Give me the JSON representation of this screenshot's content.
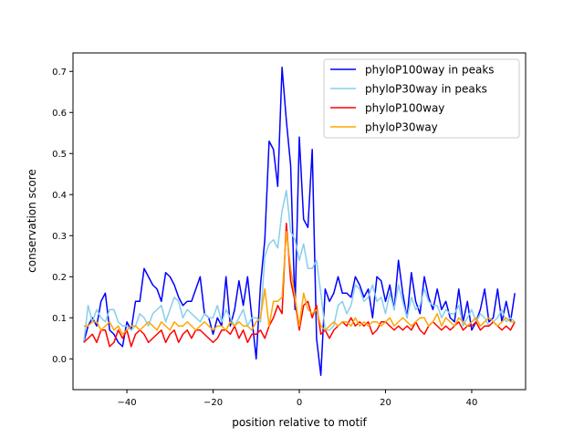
{
  "chart_data": {
    "type": "line",
    "title": "",
    "xlabel": "position relative to motif",
    "ylabel": "conservation score",
    "xlim": [
      -52.5,
      52.5
    ],
    "ylim": [
      -0.075,
      0.745
    ],
    "xticks": [
      -40,
      -20,
      0,
      20,
      40
    ],
    "yticks": [
      0.0,
      0.1,
      0.2,
      0.3,
      0.4,
      0.5,
      0.6,
      0.7
    ],
    "xtick_labels": [
      "−40",
      "−20",
      "0",
      "20",
      "40"
    ],
    "ytick_labels": [
      "0.0",
      "0.1",
      "0.2",
      "0.3",
      "0.4",
      "0.5",
      "0.6",
      "0.7"
    ],
    "legend_position": "top-right",
    "x": [
      -50,
      -49,
      -48,
      -47,
      -46,
      -45,
      -44,
      -43,
      -42,
      -41,
      -40,
      -39,
      -38,
      -37,
      -36,
      -35,
      -34,
      -33,
      -32,
      -31,
      -30,
      -29,
      -28,
      -27,
      -26,
      -25,
      -24,
      -23,
      -22,
      -21,
      -20,
      -19,
      -18,
      -17,
      -16,
      -15,
      -14,
      -13,
      -12,
      -11,
      -10,
      -9,
      -8,
      -7,
      -6,
      -5,
      -4,
      -3,
      -2,
      -1,
      0,
      1,
      2,
      3,
      4,
      5,
      6,
      7,
      8,
      9,
      10,
      11,
      12,
      13,
      14,
      15,
      16,
      17,
      18,
      19,
      20,
      21,
      22,
      23,
      24,
      25,
      26,
      27,
      28,
      29,
      30,
      31,
      32,
      33,
      34,
      35,
      36,
      37,
      38,
      39,
      40,
      41,
      42,
      43,
      44,
      45,
      46,
      47,
      48,
      49,
      50
    ],
    "series": [
      {
        "name": "phyloP100way in peaks",
        "color": "#0000ff",
        "values": [
          0.04,
          0.08,
          0.1,
          0.08,
          0.14,
          0.16,
          0.07,
          0.06,
          0.04,
          0.03,
          0.09,
          0.07,
          0.14,
          0.14,
          0.22,
          0.2,
          0.18,
          0.17,
          0.14,
          0.21,
          0.2,
          0.18,
          0.15,
          0.13,
          0.14,
          0.14,
          0.17,
          0.2,
          0.11,
          0.1,
          0.06,
          0.1,
          0.08,
          0.2,
          0.08,
          0.12,
          0.19,
          0.13,
          0.2,
          0.1,
          0.0,
          0.18,
          0.29,
          0.53,
          0.51,
          0.42,
          0.71,
          0.58,
          0.47,
          0.12,
          0.54,
          0.34,
          0.32,
          0.51,
          0.05,
          -0.04,
          0.17,
          0.14,
          0.16,
          0.2,
          0.16,
          0.16,
          0.15,
          0.2,
          0.18,
          0.15,
          0.17,
          0.1,
          0.2,
          0.19,
          0.14,
          0.18,
          0.12,
          0.24,
          0.16,
          0.1,
          0.21,
          0.14,
          0.11,
          0.2,
          0.15,
          0.12,
          0.17,
          0.12,
          0.14,
          0.1,
          0.09,
          0.17,
          0.09,
          0.14,
          0.07,
          0.09,
          0.12,
          0.17,
          0.09,
          0.1,
          0.17,
          0.09,
          0.14,
          0.09,
          0.16
        ]
      },
      {
        "name": "phyloP30way in peaks",
        "color": "#87ceeb",
        "values": [
          0.04,
          0.13,
          0.09,
          0.12,
          0.1,
          0.09,
          0.12,
          0.12,
          0.09,
          0.08,
          0.08,
          0.07,
          0.08,
          0.11,
          0.1,
          0.08,
          0.11,
          0.12,
          0.13,
          0.09,
          0.12,
          0.15,
          0.14,
          0.1,
          0.12,
          0.11,
          0.1,
          0.09,
          0.11,
          0.1,
          0.1,
          0.13,
          0.09,
          0.12,
          0.1,
          0.08,
          0.1,
          0.12,
          0.08,
          0.1,
          0.1,
          0.09,
          0.25,
          0.28,
          0.29,
          0.27,
          0.36,
          0.41,
          0.31,
          0.29,
          0.24,
          0.28,
          0.22,
          0.22,
          0.24,
          0.16,
          0.07,
          0.07,
          0.08,
          0.13,
          0.14,
          0.11,
          0.13,
          0.18,
          0.17,
          0.14,
          0.15,
          0.18,
          0.14,
          0.15,
          0.11,
          0.16,
          0.12,
          0.18,
          0.14,
          0.1,
          0.15,
          0.12,
          0.13,
          0.17,
          0.14,
          0.13,
          0.13,
          0.1,
          0.12,
          0.11,
          0.11,
          0.13,
          0.08,
          0.1,
          0.12,
          0.09,
          0.11,
          0.1,
          0.08,
          0.09,
          0.1,
          0.12,
          0.09,
          0.1,
          0.09
        ]
      },
      {
        "name": "phyloP100way",
        "color": "#ff0000",
        "values": [
          0.04,
          0.05,
          0.06,
          0.04,
          0.07,
          0.07,
          0.03,
          0.04,
          0.07,
          0.05,
          0.07,
          0.03,
          0.06,
          0.07,
          0.06,
          0.04,
          0.05,
          0.06,
          0.07,
          0.04,
          0.06,
          0.07,
          0.04,
          0.06,
          0.07,
          0.05,
          0.07,
          0.07,
          0.06,
          0.05,
          0.04,
          0.05,
          0.07,
          0.07,
          0.06,
          0.08,
          0.05,
          0.07,
          0.04,
          0.06,
          0.06,
          0.07,
          0.05,
          0.08,
          0.1,
          0.13,
          0.11,
          0.33,
          0.19,
          0.14,
          0.07,
          0.13,
          0.14,
          0.1,
          0.13,
          0.06,
          0.07,
          0.05,
          0.07,
          0.08,
          0.09,
          0.08,
          0.1,
          0.08,
          0.09,
          0.08,
          0.09,
          0.06,
          0.07,
          0.09,
          0.09,
          0.08,
          0.07,
          0.08,
          0.07,
          0.08,
          0.07,
          0.09,
          0.07,
          0.06,
          0.08,
          0.09,
          0.08,
          0.07,
          0.08,
          0.07,
          0.08,
          0.09,
          0.07,
          0.08,
          0.08,
          0.09,
          0.07,
          0.08,
          0.08,
          0.09,
          0.08,
          0.07,
          0.08,
          0.07,
          0.09
        ]
      },
      {
        "name": "phyloP30way",
        "color": "#ffa500",
        "values": [
          0.08,
          0.08,
          0.09,
          0.09,
          0.07,
          0.08,
          0.09,
          0.07,
          0.08,
          0.06,
          0.07,
          0.08,
          0.08,
          0.07,
          0.08,
          0.09,
          0.08,
          0.07,
          0.09,
          0.08,
          0.07,
          0.09,
          0.08,
          0.08,
          0.09,
          0.08,
          0.07,
          0.08,
          0.09,
          0.08,
          0.07,
          0.08,
          0.08,
          0.07,
          0.09,
          0.08,
          0.09,
          0.08,
          0.08,
          0.07,
          0.09,
          0.1,
          0.17,
          0.08,
          0.14,
          0.14,
          0.15,
          0.31,
          0.22,
          0.15,
          0.08,
          0.16,
          0.12,
          0.11,
          0.12,
          0.08,
          0.07,
          0.08,
          0.09,
          0.08,
          0.09,
          0.09,
          0.08,
          0.1,
          0.08,
          0.09,
          0.08,
          0.09,
          0.09,
          0.08,
          0.09,
          0.1,
          0.08,
          0.09,
          0.1,
          0.09,
          0.08,
          0.09,
          0.1,
          0.1,
          0.08,
          0.09,
          0.11,
          0.08,
          0.1,
          0.09,
          0.08,
          0.1,
          0.09,
          0.08,
          0.09,
          0.1,
          0.08,
          0.09,
          0.1,
          0.09,
          0.08,
          0.09,
          0.1,
          0.09,
          0.09
        ]
      }
    ]
  }
}
